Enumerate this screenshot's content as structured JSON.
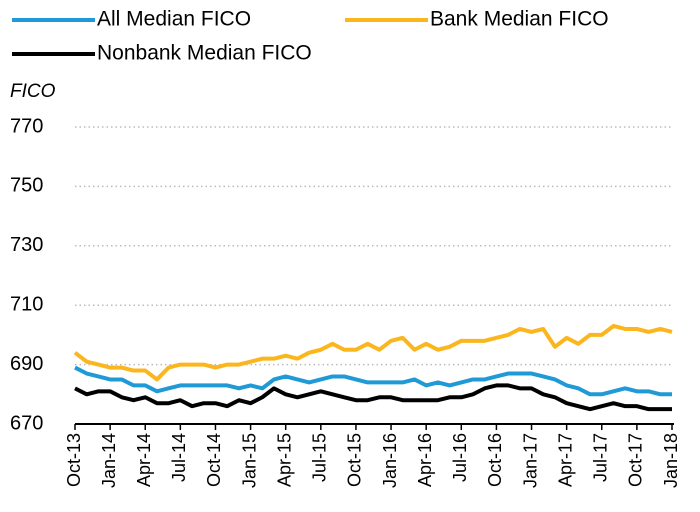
{
  "chart_data": {
    "type": "line",
    "y_axis_label": "FICO",
    "categories": [
      "Oct-13",
      null,
      null,
      "Jan-14",
      null,
      null,
      "Apr-14",
      null,
      null,
      "Jul-14",
      null,
      null,
      "Oct-14",
      null,
      null,
      "Jan-15",
      null,
      null,
      "Apr-15",
      null,
      null,
      "Jul-15",
      null,
      null,
      "Oct-15",
      null,
      null,
      "Jan-16",
      null,
      null,
      "Apr-16",
      null,
      null,
      "Jul-16",
      null,
      null,
      "Oct-16",
      null,
      null,
      "Jan-17",
      null,
      null,
      "Apr-17",
      null,
      null,
      "Jul-17",
      null,
      null,
      "Oct-17",
      null,
      null,
      "Jan-18"
    ],
    "series": [
      {
        "name": "All Median FICO",
        "color": "#1f9ad6",
        "values": [
          689,
          687,
          686,
          685,
          685,
          683,
          683,
          681,
          682,
          683,
          683,
          683,
          683,
          683,
          682,
          683,
          682,
          685,
          686,
          685,
          684,
          685,
          686,
          686,
          685,
          684,
          684,
          684,
          684,
          685,
          683,
          684,
          683,
          684,
          685,
          685,
          686,
          687,
          687,
          687,
          686,
          685,
          683,
          682,
          680,
          680,
          681,
          682,
          681,
          681,
          680,
          680
        ]
      },
      {
        "name": "Bank Median FICO",
        "color": "#fbb61e",
        "values": [
          694,
          691,
          690,
          689,
          689,
          688,
          688,
          685,
          689,
          690,
          690,
          690,
          689,
          690,
          690,
          691,
          692,
          692,
          693,
          692,
          694,
          695,
          697,
          695,
          695,
          697,
          695,
          698,
          699,
          695,
          697,
          695,
          696,
          698,
          698,
          698,
          699,
          700,
          702,
          701,
          702,
          696,
          699,
          697,
          700,
          700,
          703,
          702,
          702,
          701,
          702,
          701
        ]
      },
      {
        "name": "Nonbank Median FICO",
        "color": "#000000",
        "values": [
          682,
          680,
          681,
          681,
          679,
          678,
          679,
          677,
          677,
          678,
          676,
          677,
          677,
          676,
          678,
          677,
          679,
          682,
          680,
          679,
          680,
          681,
          680,
          679,
          678,
          678,
          679,
          679,
          678,
          678,
          678,
          678,
          679,
          679,
          680,
          682,
          683,
          683,
          682,
          682,
          680,
          679,
          677,
          676,
          675,
          676,
          677,
          676,
          676,
          675,
          675,
          675
        ]
      }
    ],
    "ylim": [
      670,
      770
    ],
    "yticks": [
      670,
      690,
      710,
      730,
      750,
      770
    ],
    "grid": true
  }
}
